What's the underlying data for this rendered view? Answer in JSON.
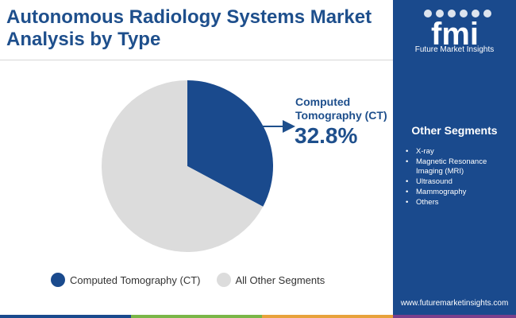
{
  "title": "Autonomous Radiology Systems Market Analysis by Type",
  "chart_data": {
    "type": "pie",
    "title": "",
    "slices": [
      {
        "label": "Computed Tomography (CT)",
        "value": 32.8,
        "color": "#1a4a8d"
      },
      {
        "label": "All Other Segments",
        "value": 67.2,
        "color": "#dcdcdc"
      }
    ],
    "callout": {
      "label": "Computed Tomography (CT)",
      "value": "32.8%"
    },
    "legend_position": "bottom"
  },
  "sidebar": {
    "logo_text": "fmi",
    "logo_caption": "Future Market Insights",
    "segments_title": "Other Segments",
    "segments": [
      "X-ray",
      "Magnetic Resonance Imaging (MRI)",
      "Ultrasound",
      "Mammography",
      "Others"
    ],
    "website": "www.futuremarketinsights.com"
  },
  "colors": {
    "brand_blue": "#1a4a8d",
    "title_blue": "#1e4f8c",
    "bottom_bar": [
      "#1a4a8d",
      "#7ab648",
      "#e8a23b",
      "#7a3f8c",
      "#c0392b"
    ]
  }
}
